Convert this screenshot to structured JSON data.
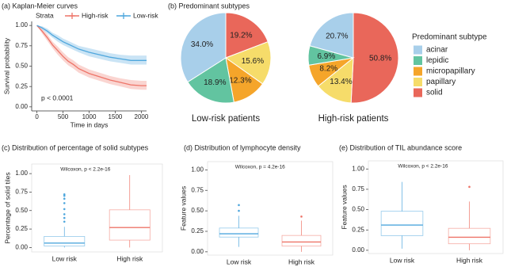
{
  "chart_data": [
    {
      "type": "line",
      "title": "(a) Kaplan-Meier curves",
      "legend_title": "Strata",
      "x_label": "Time in days",
      "y_label": "Survival probability",
      "annotation": "p < 0.0001",
      "x": [
        0,
        100,
        200,
        300,
        400,
        500,
        600,
        700,
        800,
        1000,
        1200,
        1400,
        1600,
        1800,
        2000,
        2100
      ],
      "series": [
        {
          "name": "High-risk",
          "color": "#ee7468",
          "values": [
            1,
            0.93,
            0.85,
            0.76,
            0.69,
            0.62,
            0.56,
            0.52,
            0.47,
            0.41,
            0.37,
            0.33,
            0.3,
            0.27,
            0.26,
            0.26
          ],
          "lower": [
            1,
            0.9,
            0.81,
            0.72,
            0.64,
            0.57,
            0.51,
            0.47,
            0.42,
            0.36,
            0.32,
            0.28,
            0.25,
            0.22,
            0.21,
            0.21
          ],
          "upper": [
            1,
            0.96,
            0.89,
            0.8,
            0.74,
            0.67,
            0.61,
            0.57,
            0.52,
            0.46,
            0.42,
            0.38,
            0.35,
            0.33,
            0.32,
            0.32
          ]
        },
        {
          "name": "Low-risk",
          "color": "#4fa7dd",
          "values": [
            1,
            0.97,
            0.93,
            0.88,
            0.84,
            0.8,
            0.77,
            0.74,
            0.71,
            0.67,
            0.64,
            0.61,
            0.59,
            0.57,
            0.57,
            0.57
          ],
          "lower": [
            1,
            0.95,
            0.9,
            0.85,
            0.8,
            0.76,
            0.73,
            0.7,
            0.67,
            0.62,
            0.59,
            0.56,
            0.54,
            0.52,
            0.52,
            0.52
          ],
          "upper": [
            1,
            0.99,
            0.96,
            0.91,
            0.88,
            0.84,
            0.81,
            0.78,
            0.75,
            0.72,
            0.69,
            0.66,
            0.64,
            0.63,
            0.63,
            0.63
          ]
        }
      ],
      "xlim": [
        -100,
        2100
      ],
      "xticks": [
        0,
        500,
        1000,
        1500,
        2000
      ],
      "ylim": [
        -0.05,
        1.05
      ],
      "yticks": [
        {
          "value": 0,
          "label": "0.00"
        },
        {
          "value": 0.25,
          "label": "0.25"
        },
        {
          "value": 0.5,
          "label": "0.50"
        },
        {
          "value": 0.75,
          "label": "0.75"
        },
        {
          "value": 1,
          "label": "1.00"
        }
      ]
    },
    {
      "type": "pie",
      "title": "(b) Predominant subtypes",
      "legend_title": "Predominant subtype",
      "caption": "Low-risk patients",
      "categories": [
        "acinar",
        "lepidic",
        "micropapillary",
        "papillary",
        "solid"
      ],
      "colors": [
        "#a8cfea",
        "#62c4a0",
        "#f5a52a",
        "#f6dc6a",
        "#e9675a"
      ],
      "values": [
        34.0,
        18.9,
        12.3,
        15.6,
        19.2
      ],
      "value_labels": [
        "34.0%",
        "18.9%",
        "12.3%",
        "15.6%",
        "19.2%"
      ]
    },
    {
      "type": "pie",
      "caption": "High-risk patients",
      "values": [
        20.7,
        6.9,
        8.2,
        13.4,
        50.8
      ],
      "value_labels": [
        "20.7%",
        "6.9%",
        "8.2%",
        "13.4%",
        "50.8%"
      ]
    },
    {
      "type": "box",
      "title": "(c) Distribution of percentage of solid subtypes",
      "annotation": "Wilcoxon, p < 2.2e-16",
      "y_label": "Percentage of solid tiles",
      "categories": [
        "Low risk",
        "High risk"
      ],
      "colors": [
        "#4fa7dd",
        "#ee7468"
      ],
      "boxes": [
        {
          "whisker_low": 0,
          "q1": 0.02,
          "median": 0.06,
          "q3": 0.15,
          "whisker_high": 0.28,
          "outliers": [
            0.35,
            0.4,
            0.45,
            0.52,
            0.6,
            0.66,
            0.7,
            0.72
          ]
        },
        {
          "whisker_low": 0,
          "q1": 0.1,
          "median": 0.27,
          "q3": 0.51,
          "whisker_high": 0.98,
          "outliers": []
        }
      ],
      "ylim": [
        -0.06,
        1.13
      ],
      "yticks": [
        {
          "value": 0,
          "label": "0.00"
        },
        {
          "value": 0.25,
          "label": "0.25"
        },
        {
          "value": 0.5,
          "label": "0.50"
        },
        {
          "value": 0.75,
          "label": "0.75"
        },
        {
          "value": 1,
          "label": "1.00"
        }
      ]
    },
    {
      "type": "box",
      "title": "(d) Distribution of lymphocyte density",
      "annotation": "Wilcoxon, p = 4.2e-16",
      "y_label": "Feature values",
      "categories": [
        "Low risk",
        "High risk"
      ],
      "colors": [
        "#4fa7dd",
        "#ee7468"
      ],
      "boxes": [
        {
          "whisker_low": 0.06,
          "q1": 0.18,
          "median": 0.22,
          "q3": 0.29,
          "whisker_high": 0.44,
          "outliers": [
            0.5,
            0.57
          ]
        },
        {
          "whisker_low": 0,
          "q1": 0.07,
          "median": 0.12,
          "q3": 0.2,
          "whisker_high": 0.38,
          "outliers": [
            0.43
          ]
        }
      ],
      "ylim": [
        -0.04,
        1.1
      ],
      "yticks": [
        {
          "value": 0,
          "label": "0.00"
        },
        {
          "value": 0.25,
          "label": "0.25"
        },
        {
          "value": 0.5,
          "label": "0.50"
        },
        {
          "value": 0.75,
          "label": "0.75"
        },
        {
          "value": 1,
          "label": "1.00"
        }
      ]
    },
    {
      "type": "box",
      "title": "(e) Distribution of TIL abundance score",
      "annotation": "Wilcoxon, p < 2.2e-16",
      "y_label": "Feature values",
      "categories": [
        "Low risk",
        "High risk"
      ],
      "colors": [
        "#4fa7dd",
        "#ee7468"
      ],
      "boxes": [
        {
          "whisker_low": 0.02,
          "q1": 0.18,
          "median": 0.31,
          "q3": 0.48,
          "whisker_high": 0.84,
          "outliers": []
        },
        {
          "whisker_low": 0,
          "q1": 0.08,
          "median": 0.16,
          "q3": 0.27,
          "whisker_high": 0.6,
          "outliers": [
            0.78
          ]
        }
      ],
      "ylim": [
        -0.04,
        1.1
      ],
      "yticks": [
        {
          "value": 0,
          "label": "0.00"
        },
        {
          "value": 0.25,
          "label": "0.25"
        },
        {
          "value": 0.5,
          "label": "0.50"
        },
        {
          "value": 0.75,
          "label": "0.75"
        },
        {
          "value": 1,
          "label": "1.00"
        }
      ]
    }
  ]
}
